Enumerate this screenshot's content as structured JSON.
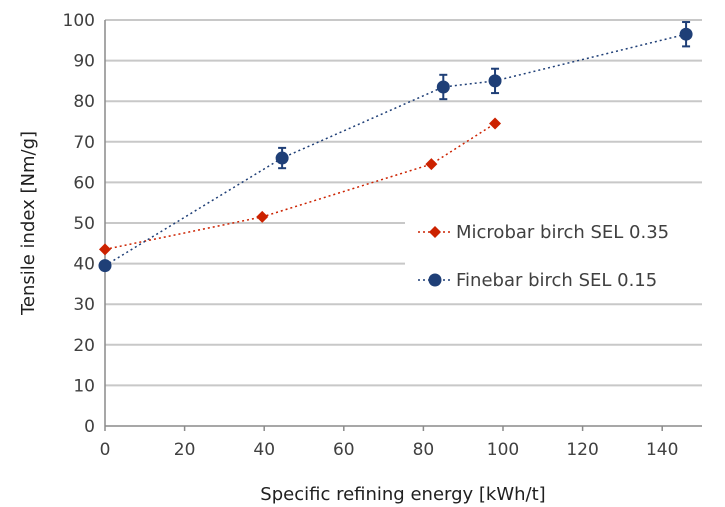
{
  "chart_data": {
    "type": "scatter",
    "xlabel": "Specific refining energy [kWh/t]",
    "ylabel": "Tensile index [Nm/g]",
    "xlim": [
      0,
      150
    ],
    "ylim": [
      0,
      100
    ],
    "x_ticks": [
      0,
      20,
      40,
      60,
      80,
      100,
      120,
      140
    ],
    "y_ticks": [
      0,
      10,
      20,
      30,
      40,
      50,
      60,
      70,
      80,
      90,
      100
    ],
    "grid": "horizontal",
    "legend_position": "right",
    "series": [
      {
        "name": "Microbar birch SEL 0.35",
        "color": "#cc2200",
        "marker": "diamond",
        "points": [
          {
            "x": 0,
            "y": 43.5
          },
          {
            "x": 39.5,
            "y": 51.5
          },
          {
            "x": 82,
            "y": 64.5
          },
          {
            "x": 98,
            "y": 74.5
          }
        ]
      },
      {
        "name": "Finebar birch SEL 0.15",
        "color": "#1f3f77",
        "marker": "circle",
        "points": [
          {
            "x": 0,
            "y": 39.5,
            "err": 0
          },
          {
            "x": 44.5,
            "y": 66,
            "err": 2.5
          },
          {
            "x": 85,
            "y": 83.5,
            "err": 3
          },
          {
            "x": 98,
            "y": 85,
            "err": 3
          },
          {
            "x": 146,
            "y": 96.5,
            "err": 3
          }
        ]
      }
    ]
  }
}
